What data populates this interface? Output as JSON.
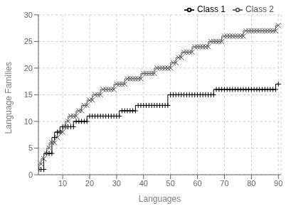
{
  "chart_data": {
    "type": "line",
    "title": "",
    "xlabel": "Languages",
    "ylabel": "Language Families",
    "xlim": [
      1,
      91
    ],
    "ylim": [
      0,
      30
    ],
    "xticks": [
      10,
      20,
      30,
      40,
      50,
      60,
      70,
      80,
      90
    ],
    "yticks": [
      0,
      5,
      10,
      15,
      20,
      25,
      30
    ],
    "grid": true,
    "legend": "upper right",
    "x": [
      1,
      2,
      3,
      4,
      5,
      6,
      7,
      8,
      9,
      10,
      11,
      12,
      13,
      14,
      15,
      16,
      17,
      18,
      19,
      20,
      21,
      22,
      23,
      24,
      25,
      26,
      27,
      28,
      29,
      30,
      31,
      32,
      33,
      34,
      35,
      36,
      37,
      38,
      39,
      40,
      41,
      42,
      43,
      44,
      45,
      46,
      47,
      48,
      49,
      50,
      51,
      52,
      53,
      54,
      55,
      56,
      57,
      58,
      59,
      60,
      61,
      62,
      63,
      64,
      65,
      66,
      67,
      68,
      69,
      70,
      71,
      72,
      73,
      74,
      75,
      76,
      77,
      78,
      79,
      80,
      81,
      82,
      83,
      84,
      85,
      86,
      87,
      88,
      89,
      90
    ],
    "series": [
      {
        "name": "Class 1",
        "color": "#000000",
        "marker": "plus",
        "line_style": "step",
        "values": [
          1,
          1,
          1,
          4,
          4,
          4,
          7,
          8,
          8,
          9,
          9,
          9,
          9,
          9,
          10,
          10,
          10,
          10,
          10,
          11,
          11,
          11,
          11,
          11,
          11,
          11,
          11,
          11,
          11,
          11,
          11,
          12,
          12,
          12,
          12,
          12,
          12,
          13,
          13,
          13,
          13,
          13,
          13,
          13,
          13,
          13,
          13,
          13,
          13,
          15,
          15,
          15,
          15,
          15,
          15,
          15,
          15,
          15,
          15,
          15,
          15,
          15,
          15,
          15,
          15,
          15,
          16,
          16,
          16,
          16,
          16,
          16,
          16,
          16,
          16,
          16,
          16,
          16,
          16,
          16,
          16,
          16,
          16,
          16,
          16,
          16,
          16,
          16,
          16,
          17
        ]
      },
      {
        "name": "Class 2",
        "color": "#555555",
        "marker": "x",
        "line_style": "step",
        "values": [
          1,
          2,
          3,
          4,
          5,
          6,
          6,
          7,
          8,
          8,
          9,
          10,
          11,
          11,
          11,
          12,
          12,
          13,
          13,
          14,
          14,
          15,
          15,
          15,
          16,
          16,
          16,
          16,
          16,
          17,
          17,
          17,
          17,
          18,
          18,
          18,
          18,
          18,
          18,
          19,
          19,
          19,
          19,
          19,
          20,
          20,
          20,
          20,
          20,
          20,
          21,
          21,
          22,
          22,
          23,
          23,
          23,
          23,
          24,
          24,
          24,
          24,
          24,
          24,
          25,
          25,
          25,
          25,
          25,
          26,
          26,
          26,
          26,
          26,
          26,
          26,
          26,
          27,
          27,
          27,
          27,
          27,
          27,
          27,
          27,
          27,
          27,
          27,
          27,
          28
        ]
      }
    ]
  }
}
